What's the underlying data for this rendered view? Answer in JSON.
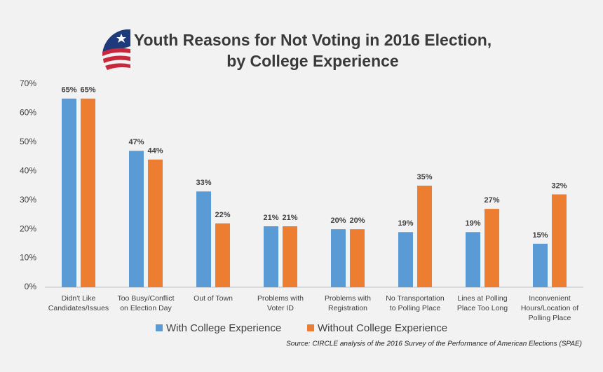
{
  "chart_data": {
    "type": "bar",
    "title": [
      "Youth Reasons for Not Voting in 2016 Election,",
      "by College Experience"
    ],
    "categories": [
      [
        "Didn't Like",
        "Candidates/Issues"
      ],
      [
        "Too Busy/Conflict",
        "on Election Day"
      ],
      [
        "Out of Town"
      ],
      [
        "Problems with",
        "Voter ID"
      ],
      [
        "Problems with",
        "Registration"
      ],
      [
        "No Transportation",
        "to Polling Place"
      ],
      [
        "Lines at Polling",
        "Place Too Long"
      ],
      [
        "Inconvenient",
        "Hours/Location of",
        "Polling Place"
      ]
    ],
    "series": [
      {
        "name": "With College Experience",
        "color": "#5b9bd5",
        "values": [
          65,
          47,
          33,
          21,
          20,
          19,
          19,
          15
        ],
        "value_labels": [
          "65%",
          "47%",
          "33%",
          "21%",
          "20%",
          "19%",
          "19%",
          "15%"
        ]
      },
      {
        "name": "Without College Experience",
        "color": "#ed7d31",
        "values": [
          65,
          44,
          22,
          21,
          20,
          35,
          27,
          32
        ],
        "value_labels": [
          "65%",
          "44%",
          "22%",
          "21%",
          "20%",
          "35%",
          "27%",
          "32%"
        ]
      }
    ],
    "ylim": [
      0,
      70
    ],
    "yticks": [
      {
        "value": 0,
        "label": "0%"
      },
      {
        "value": 10,
        "label": "10%"
      },
      {
        "value": 20,
        "label": "20%"
      },
      {
        "value": 30,
        "label": "30%"
      },
      {
        "value": 40,
        "label": "40%"
      },
      {
        "value": 50,
        "label": "50%"
      },
      {
        "value": 60,
        "label": "60%"
      },
      {
        "value": 70,
        "label": "70%"
      }
    ],
    "grid": false,
    "source": "Source: CIRCLE analysis of the 2016 Survey of the Performance of American Elections (SPAE)"
  }
}
